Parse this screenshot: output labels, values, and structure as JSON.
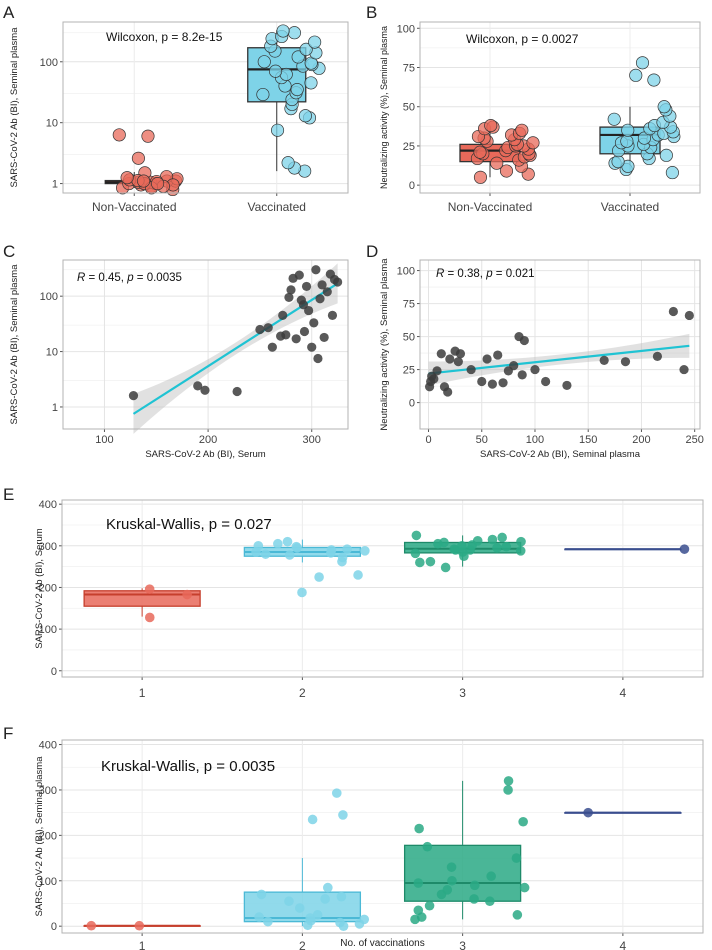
{
  "colors": {
    "red": "#e8695a",
    "red_dark": "#c63f2d",
    "cyan": "#7ed3e8",
    "cyan_dark": "#4bb9d6",
    "teal": "#2aa985",
    "teal_dark": "#1e8a69",
    "navy": "#3a4e8e",
    "line": "#1fc3d3",
    "gray_point": "#3c3c3c"
  },
  "chart_data": [
    {
      "panel": "A",
      "type": "box",
      "scale": "log10",
      "ylim": [
        0.7,
        450
      ],
      "yticks": [
        1,
        10,
        100
      ],
      "ytick_labels": [
        "1",
        "10",
        "100"
      ],
      "ylabel": "SARS-CoV-2 Ab (BI), Seminal plasma",
      "categories": [
        "Non-Vaccinated",
        "Vaccinated"
      ],
      "annotation": "Wilcoxon, p = 8.2e-15",
      "boxes": [
        {
          "whisker_low": 0.85,
          "q1": 1.0,
          "median": 1.05,
          "q3": 1.12,
          "whisker_high": 1.55
        },
        {
          "whisker_low": 1.6,
          "q1": 22,
          "median": 75,
          "q3": 170,
          "whisker_high": 330
        }
      ],
      "points": [
        [
          0.8,
          0.85,
          0.9,
          0.95,
          1.0,
          1.0,
          1.0,
          1.05,
          1.05,
          1.1,
          1.1,
          1.15,
          1.2,
          1.3,
          1.5,
          0.95,
          1.0,
          1.08,
          1.12,
          0.9,
          0.85,
          1.0,
          1.1,
          1.25,
          2.6,
          6.0,
          6.3
        ],
        [
          1.6,
          1.8,
          2.2,
          7.5,
          12,
          13,
          17,
          20,
          24,
          29,
          31,
          35,
          40,
          45,
          55,
          62,
          70,
          78,
          85,
          90,
          95,
          100,
          120,
          140,
          150,
          160,
          180,
          210,
          240,
          260,
          300,
          320
        ]
      ]
    },
    {
      "panel": "B",
      "type": "box",
      "scale": "linear",
      "ylim": [
        -5,
        104
      ],
      "yticks": [
        0,
        25,
        50,
        75,
        100
      ],
      "ytick_labels": [
        "0",
        "25",
        "50",
        "75",
        "100"
      ],
      "ylabel": "Neutralizing activity (%), Seminal plasma",
      "categories": [
        "Non-Vaccinated",
        "Vaccinated"
      ],
      "annotation": "Wilcoxon, p = 0.0027",
      "boxes": [
        {
          "whisker_low": 5,
          "q1": 15,
          "median": 22,
          "q3": 26,
          "whisker_high": 38
        },
        {
          "whisker_low": 8,
          "q1": 20,
          "median": 32,
          "q3": 37,
          "whisker_high": 50
        }
      ],
      "points": [
        [
          5,
          7,
          9,
          12,
          14,
          16,
          17,
          18,
          19,
          20,
          20,
          21,
          22,
          23,
          24,
          25,
          25,
          26,
          27,
          28,
          29,
          30,
          31,
          32,
          33,
          35,
          36,
          37,
          38
        ],
        [
          8,
          10,
          12,
          14,
          15,
          17,
          19,
          20,
          22,
          24,
          25,
          26,
          27,
          28,
          29,
          30,
          31,
          32,
          33,
          34,
          35,
          36,
          37,
          38,
          40,
          42,
          44,
          48,
          50,
          67,
          70,
          78
        ]
      ]
    },
    {
      "panel": "C",
      "type": "scatter",
      "scale_y": "log10",
      "xlim": [
        60,
        335
      ],
      "ylim": [
        0.4,
        450
      ],
      "xticks": [
        100,
        200,
        300
      ],
      "xtick_labels": [
        "100",
        "200",
        "300"
      ],
      "yticks": [
        1,
        10,
        100
      ],
      "ytick_labels": [
        "1",
        "10",
        "100"
      ],
      "xlabel": "SARS-CoV-2 Ab (BI), Serum",
      "ylabel": "SARS-CoV-2 Ab (BI), Seminal plasma",
      "annotation_r": "R",
      "annotation_rest": " = 0.45, ",
      "annotation_p": "p",
      "annotation_pval": " = 0.0035",
      "x": [
        128,
        190,
        197,
        228,
        250,
        258,
        262,
        270,
        272,
        275,
        278,
        280,
        282,
        285,
        288,
        290,
        292,
        293,
        295,
        297,
        300,
        302,
        304,
        306,
        308,
        310,
        312,
        315,
        318,
        320,
        322,
        325
      ],
      "y": [
        1.6,
        2.4,
        2.0,
        1.9,
        25,
        27,
        12,
        19,
        45,
        20,
        95,
        130,
        210,
        17,
        240,
        85,
        70,
        23,
        150,
        55,
        12,
        33,
        300,
        7.5,
        90,
        160,
        18,
        120,
        250,
        45,
        200,
        180
      ],
      "fit": {
        "x0": 128,
        "y0": 0.75,
        "x1": 325,
        "y1": 170
      }
    },
    {
      "panel": "D",
      "type": "scatter",
      "scale_y": "linear",
      "xlim": [
        -8,
        255
      ],
      "ylim": [
        -20,
        108
      ],
      "xticks": [
        0,
        50,
        100,
        150,
        200,
        250
      ],
      "xtick_labels": [
        "0",
        "50",
        "100",
        "150",
        "200",
        "250"
      ],
      "yticks": [
        0,
        25,
        50,
        75,
        100
      ],
      "ytick_labels": [
        "0",
        "25",
        "50",
        "75",
        "100"
      ],
      "xlabel": "SARS-CoV-2 Ab (BI), Seminal plasma",
      "ylabel": "Neutralizing activity (%), Seminal plasma",
      "annotation_r": "R",
      "annotation_rest": " = 0.38, ",
      "annotation_p": "p",
      "annotation_pval": " = 0.021",
      "x": [
        1,
        2,
        3,
        5,
        8,
        12,
        15,
        18,
        20,
        25,
        28,
        30,
        40,
        50,
        55,
        60,
        65,
        70,
        75,
        80,
        85,
        88,
        90,
        100,
        110,
        130,
        165,
        185,
        215,
        230,
        240,
        245
      ],
      "y": [
        12,
        16,
        20,
        18,
        24,
        37,
        12,
        8,
        33,
        39,
        31,
        37,
        25,
        16,
        33,
        14,
        36,
        15,
        24,
        28,
        50,
        21,
        47,
        25,
        16,
        13,
        32,
        31,
        35,
        69,
        25,
        66
      ],
      "fit": {
        "x0": 0,
        "y0": 22,
        "x1": 245,
        "y1": 43
      }
    },
    {
      "panel": "E",
      "type": "box",
      "scale": "linear",
      "ylim": [
        -15,
        410
      ],
      "yticks": [
        0,
        100,
        200,
        300,
        400
      ],
      "ytick_labels": [
        "0",
        "100",
        "200",
        "300",
        "400"
      ],
      "ylabel": "SARS-CoV-2 Ab (BI), Serum",
      "categories": [
        "1",
        "2",
        "3",
        "4"
      ],
      "annotation": "Kruskal-Wallis, p = 0.027",
      "boxes": [
        {
          "whisker_low": 130,
          "q1": 155,
          "median": 183,
          "q3": 192,
          "whisker_high": 198
        },
        {
          "whisker_low": 260,
          "q1": 275,
          "median": 285,
          "q3": 296,
          "whisker_high": 315
        },
        {
          "whisker_low": 250,
          "q1": 283,
          "median": 293,
          "q3": 308,
          "whisker_high": 325
        },
        {
          "whisker_low": 292,
          "q1": 292,
          "median": 292,
          "q3": 292,
          "whisker_high": 292
        }
      ],
      "points": [
        [
          128,
          183,
          196
        ],
        [
          188,
          225,
          230,
          262,
          272,
          278,
          280,
          283,
          285,
          288,
          290,
          292,
          295,
          298,
          300,
          305,
          310
        ],
        [
          248,
          260,
          262,
          275,
          282,
          285,
          288,
          290,
          290,
          292,
          295,
          298,
          300,
          302,
          305,
          308,
          310,
          312,
          315,
          320,
          325
        ],
        [
          292
        ]
      ]
    },
    {
      "panel": "F",
      "type": "box",
      "scale": "linear",
      "ylim": [
        -15,
        410
      ],
      "yticks": [
        0,
        100,
        200,
        300,
        400
      ],
      "ytick_labels": [
        "0",
        "100",
        "200",
        "300",
        "400"
      ],
      "ylabel": "SARS-CoV-2 Ab (BI), Seminal plasma",
      "xlabel": "No. of vaccinations",
      "categories": [
        "1",
        "2",
        "3",
        "4"
      ],
      "annotation": "Kruskal-Wallis, p = 0.0035",
      "boxes": [
        {
          "whisker_low": 1,
          "q1": 1,
          "median": 1,
          "q3": 1,
          "whisker_high": 1
        },
        {
          "whisker_low": 0,
          "q1": 10,
          "median": 18,
          "q3": 75,
          "whisker_high": 150
        },
        {
          "whisker_low": 15,
          "q1": 55,
          "median": 95,
          "q3": 178,
          "whisker_high": 320
        },
        {
          "whisker_low": 250,
          "q1": 250,
          "median": 250,
          "q3": 250,
          "whisker_high": 250
        }
      ],
      "points": [
        [
          1,
          1
        ],
        [
          0,
          2,
          5,
          8,
          10,
          12,
          15,
          18,
          20,
          25,
          40,
          55,
          60,
          65,
          70,
          85,
          235,
          245,
          293
        ],
        [
          15,
          20,
          25,
          35,
          45,
          55,
          60,
          70,
          80,
          85,
          90,
          95,
          100,
          110,
          130,
          150,
          175,
          215,
          230,
          300,
          320
        ],
        [
          250
        ]
      ]
    }
  ]
}
